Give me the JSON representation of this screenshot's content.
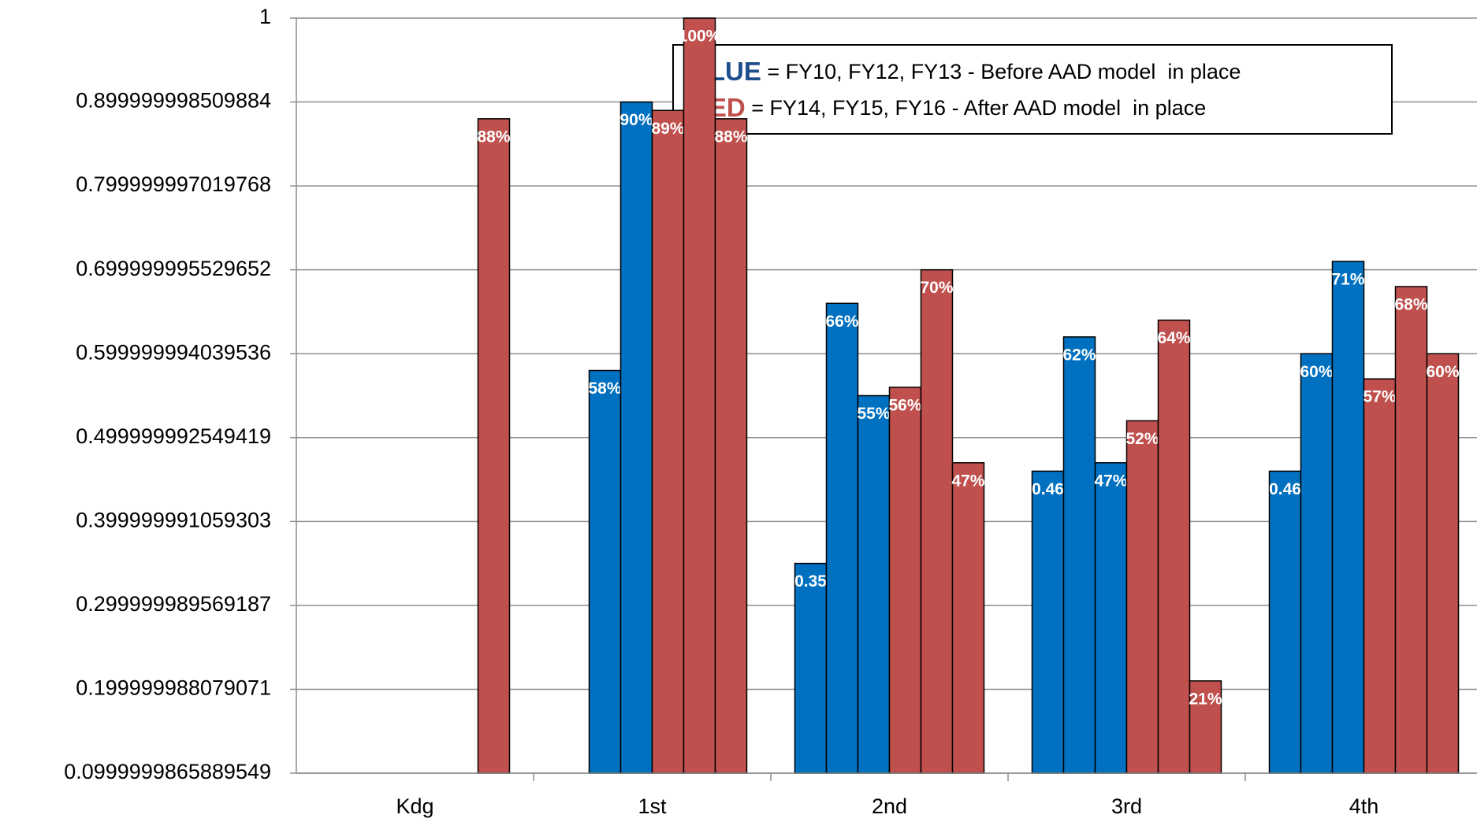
{
  "chart_data": {
    "type": "bar",
    "categories": [
      "Kdg",
      "1st",
      "2nd",
      "3rd",
      "4th"
    ],
    "series": [
      {
        "color": "#0070c0",
        "values": [
          null,
          null,
          0.35,
          0.46,
          0.46
        ],
        "value_labels": [
          null,
          null,
          "0.35",
          "0.46",
          "0.46"
        ]
      },
      {
        "color": "#0070c0",
        "values": [
          null,
          0.58,
          0.66,
          0.62,
          0.6
        ],
        "value_labels": [
          null,
          "58%",
          "66%",
          "62%",
          "60%"
        ]
      },
      {
        "color": "#0070c0",
        "values": [
          null,
          0.9,
          0.55,
          0.47,
          0.71
        ],
        "value_labels": [
          null,
          "90%",
          "55%",
          "47%",
          "71%"
        ]
      },
      {
        "color": "#c0504d",
        "values": [
          null,
          0.89,
          0.56,
          0.52,
          0.57
        ],
        "value_labels": [
          null,
          "89%",
          "56%",
          "52%",
          "57%"
        ]
      },
      {
        "color": "#c0504d",
        "values": [
          null,
          1.0,
          0.7,
          0.64,
          0.68
        ],
        "value_labels": [
          null,
          "100%",
          "70%",
          "64%",
          "68%"
        ]
      },
      {
        "color": "#c0504d",
        "values": [
          0.88,
          0.88,
          0.47,
          0.21,
          0.6
        ],
        "value_labels": [
          "88%",
          "88%",
          "47%",
          "21%",
          "60%"
        ]
      }
    ],
    "ylim": [
      0.1,
      1
    ],
    "yticks": [
      {
        "value": 0.1,
        "label": "0.0999999865889549"
      },
      {
        "value": 0.2,
        "label": "0.199999988079071"
      },
      {
        "value": 0.3,
        "label": "0.299999989569187"
      },
      {
        "value": 0.4,
        "label": "0.399999991059303"
      },
      {
        "value": 0.5,
        "label": "0.499999992549419"
      },
      {
        "value": 0.6,
        "label": "0.599999994039536"
      },
      {
        "value": 0.7,
        "label": "0.699999995529652"
      },
      {
        "value": 0.8,
        "label": "0.799999997019768"
      },
      {
        "value": 0.9,
        "label": "0.899999998509884"
      },
      1
    ],
    "grid": true,
    "legend_text": [
      {
        "key": "BLUE",
        "key_color": "#1f4e8c",
        "text": " = FY10, FY12, FY13 - Before AAD model  in place"
      },
      {
        "key": "RED",
        "key_color": "#c0504d",
        "text": " = FY14, FY15, FY16 - After AAD model  in place"
      }
    ]
  }
}
